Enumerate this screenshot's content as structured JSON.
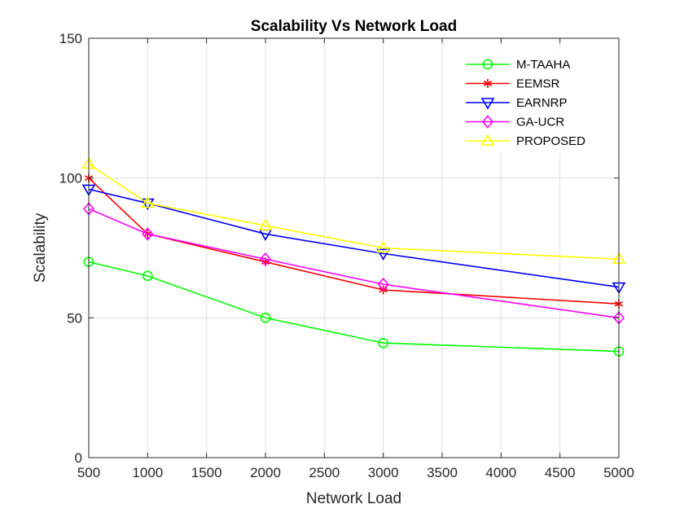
{
  "chart_data": {
    "type": "line",
    "title": "Scalability Vs Network Load",
    "xlabel": "Network Load",
    "ylabel": "Scalability",
    "xlim": [
      500,
      5000
    ],
    "ylim": [
      0,
      150
    ],
    "xticks": [
      500,
      1000,
      1500,
      2000,
      2500,
      3000,
      3500,
      4000,
      4500,
      5000
    ],
    "yticks": [
      0,
      50,
      100,
      150
    ],
    "grid": true,
    "legend_position": "top-right",
    "x": [
      500,
      1000,
      2000,
      3000,
      5000
    ],
    "series": [
      {
        "name": "M-TAAHA",
        "color": "#00ff00",
        "marker": "circle",
        "values": [
          70,
          65,
          50,
          41,
          38
        ]
      },
      {
        "name": "EEMSR",
        "color": "#ff0000",
        "marker": "asterisk",
        "values": [
          100,
          80,
          70,
          60,
          55
        ]
      },
      {
        "name": "EARNRP",
        "color": "#0000ff",
        "marker": "triangle-down",
        "values": [
          96,
          91,
          80,
          73,
          61
        ]
      },
      {
        "name": "GA-UCR",
        "color": "#ff00ff",
        "marker": "diamond",
        "values": [
          89,
          80,
          71,
          62,
          50
        ]
      },
      {
        "name": "PROPOSED",
        "color": "#ffff00",
        "marker": "triangle-up",
        "values": [
          105,
          91,
          83,
          75,
          71
        ]
      }
    ]
  }
}
